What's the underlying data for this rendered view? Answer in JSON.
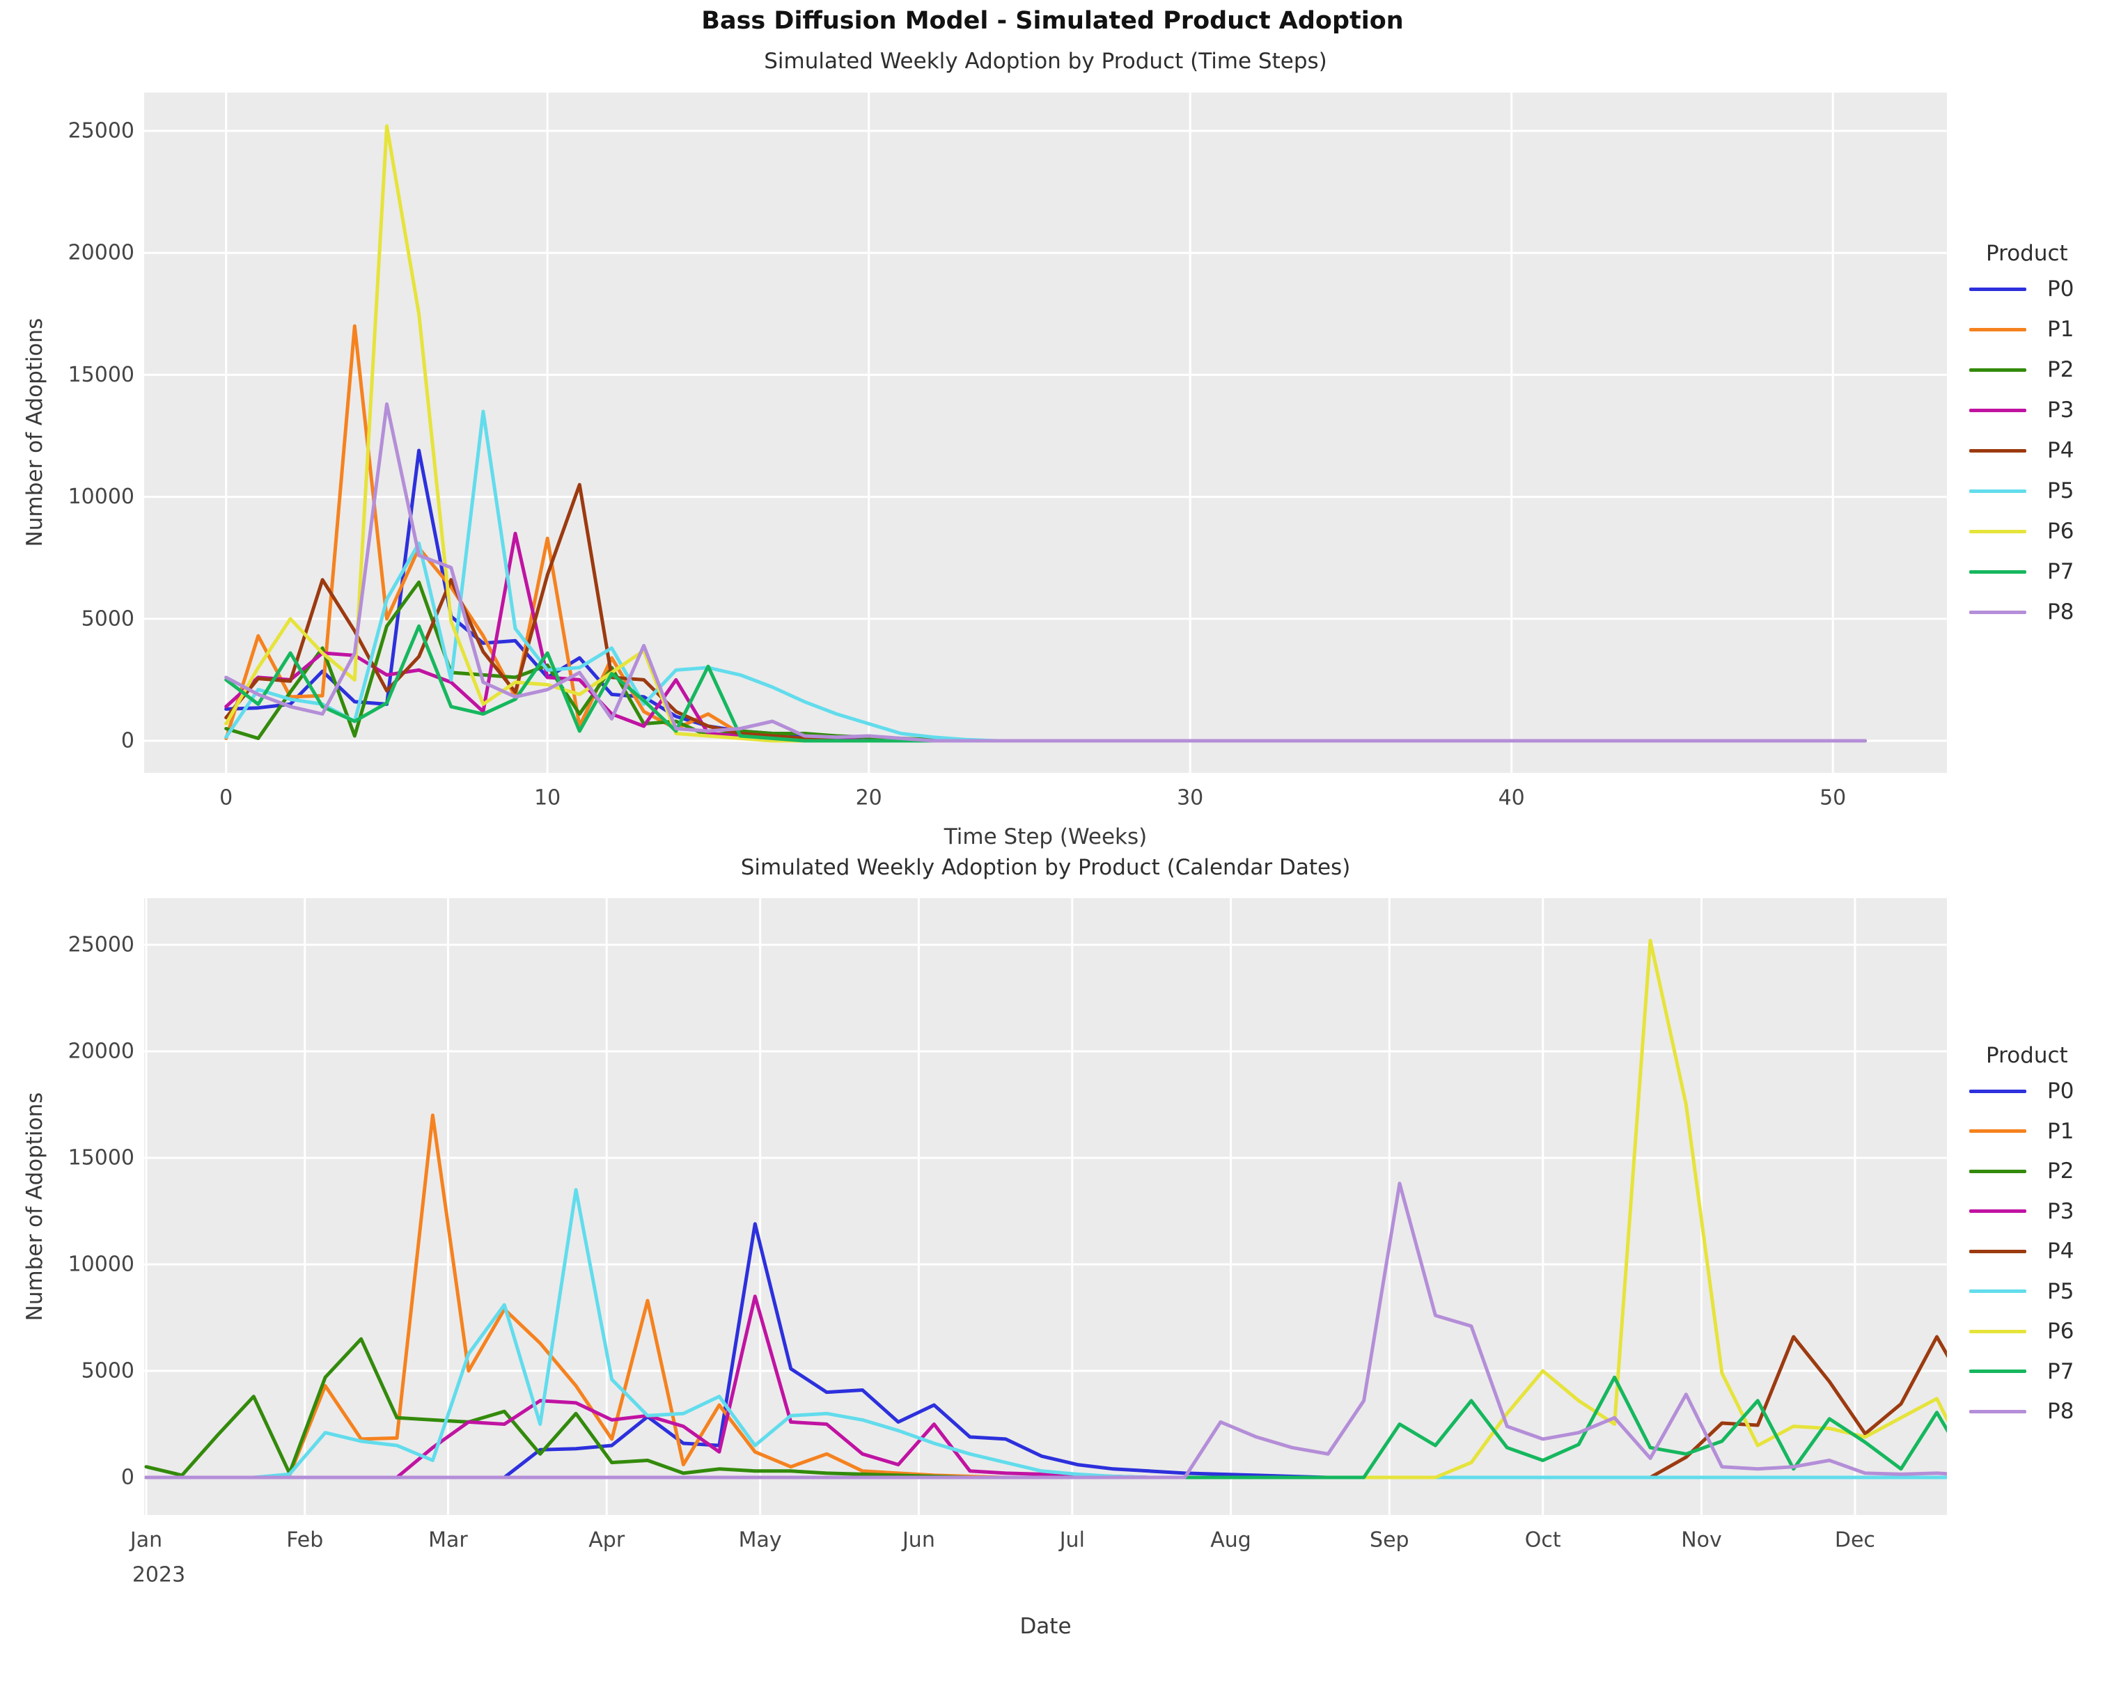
{
  "chart_data": {
    "type": "line",
    "figure_title": "Bass Diffusion Model - Simulated Product Adoption",
    "legend_title": "Product",
    "colors": {
      "figure_background": "#ffffff",
      "axes_background": "#ebebeb",
      "gridline": "#ffffff",
      "tick_text": "#454545",
      "title_text": "#121212"
    },
    "y_ticks": [
      0,
      5000,
      10000,
      15000,
      20000,
      25000
    ],
    "ylabel": "Number of Adoptions",
    "panels": [
      {
        "title": "Simulated Weekly Adoption by Product (Time Steps)",
        "xlabel": "Time Step (Weeks)",
        "ylabel": "Number of Adoptions",
        "x_ticks": [
          0,
          10,
          20,
          30,
          40,
          50
        ],
        "x_unit": "week_index",
        "weeks_plotted": 52,
        "grid": true,
        "legend_position": "right"
      },
      {
        "title": "Simulated Weekly Adoption by Product (Calendar Dates)",
        "xlabel": "Date",
        "ylabel": "Number of Adoptions",
        "x_ticks": [
          "Jan",
          "Feb",
          "Mar",
          "Apr",
          "May",
          "Jun",
          "Jul",
          "Aug",
          "Sep",
          "Oct",
          "Nov",
          "Dec"
        ],
        "x_first_tick_year": "2023",
        "x_unit": "calendar_weeks_2023",
        "grid": true,
        "legend_position": "right"
      }
    ],
    "series_note": "weekly_adoptions[i] is the adoption count in week i after product launch; top panel plots it against time-step index, bottom panel against calendar date = 2023-01-01 + (launch_week_2023 + i) * 7 days, zero before launch and clipped at year end",
    "series": [
      {
        "name": "P0",
        "color": "#2d30dc",
        "launch_week_2023": 11,
        "weekly_adoptions": [
          1300,
          1350,
          1500,
          2850,
          1600,
          1500,
          11900,
          5100,
          4000,
          4100,
          2600,
          3400,
          1900,
          1800,
          1000,
          600,
          400,
          300,
          200,
          150,
          100,
          50,
          0
        ]
      },
      {
        "name": "P1",
        "color": "#f5821f",
        "launch_week_2023": 4,
        "weekly_adoptions": [
          100,
          4300,
          1800,
          1850,
          17000,
          5000,
          7900,
          6300,
          4300,
          1800,
          8300,
          600,
          3400,
          1200,
          500,
          1100,
          300,
          200,
          100,
          50,
          0
        ]
      },
      {
        "name": "P2",
        "color": "#338a0b",
        "launch_week_2023": 0,
        "weekly_adoptions": [
          500,
          100,
          2000,
          3800,
          200,
          4700,
          6500,
          2800,
          2700,
          2600,
          3100,
          1100,
          3000,
          700,
          800,
          200,
          400,
          300,
          300,
          200,
          150,
          100,
          50,
          0
        ]
      },
      {
        "name": "P3",
        "color": "#c013a2",
        "launch_week_2023": 8,
        "weekly_adoptions": [
          1400,
          2600,
          2500,
          3600,
          3500,
          2700,
          2900,
          2400,
          1200,
          8500,
          2600,
          2500,
          1100,
          600,
          2500,
          300,
          200,
          150,
          100,
          50,
          0
        ]
      },
      {
        "name": "P4",
        "color": "#9c3a10",
        "launch_week_2023": 43,
        "weekly_adoptions": [
          950,
          2550,
          2450,
          6600,
          4500,
          2050,
          3450,
          6600,
          3650,
          2000,
          6800,
          10500,
          2600,
          2500,
          1200,
          600,
          300,
          200,
          100,
          0
        ]
      },
      {
        "name": "P5",
        "color": "#62dcec",
        "launch_week_2023": 4,
        "weekly_adoptions": [
          150,
          2100,
          1700,
          1500,
          800,
          5800,
          8100,
          2500,
          13500,
          4600,
          2900,
          3000,
          3800,
          1500,
          2900,
          3000,
          2700,
          2200,
          1600,
          1100,
          700,
          300,
          150,
          50,
          0
        ]
      },
      {
        "name": "P6",
        "color": "#e6e33b",
        "launch_week_2023": 37,
        "weekly_adoptions": [
          700,
          3000,
          5000,
          3600,
          2500,
          25200,
          17500,
          4900,
          1500,
          2400,
          2300,
          1900,
          2800,
          3700,
          300,
          200,
          100,
          0
        ]
      },
      {
        "name": "P7",
        "color": "#16b75e",
        "launch_week_2023": 35,
        "weekly_adoptions": [
          2500,
          1500,
          3600,
          1400,
          800,
          1550,
          4700,
          1400,
          1100,
          1700,
          3600,
          400,
          2750,
          1650,
          400,
          3050,
          200,
          100,
          0
        ]
      },
      {
        "name": "P8",
        "color": "#b48ed8",
        "launch_week_2023": 30,
        "weekly_adoptions": [
          2600,
          1900,
          1400,
          1100,
          3600,
          13800,
          7600,
          7100,
          2400,
          1800,
          2100,
          2800,
          900,
          3900,
          500,
          400,
          500,
          800,
          200,
          150,
          200,
          100,
          0
        ]
      }
    ]
  }
}
